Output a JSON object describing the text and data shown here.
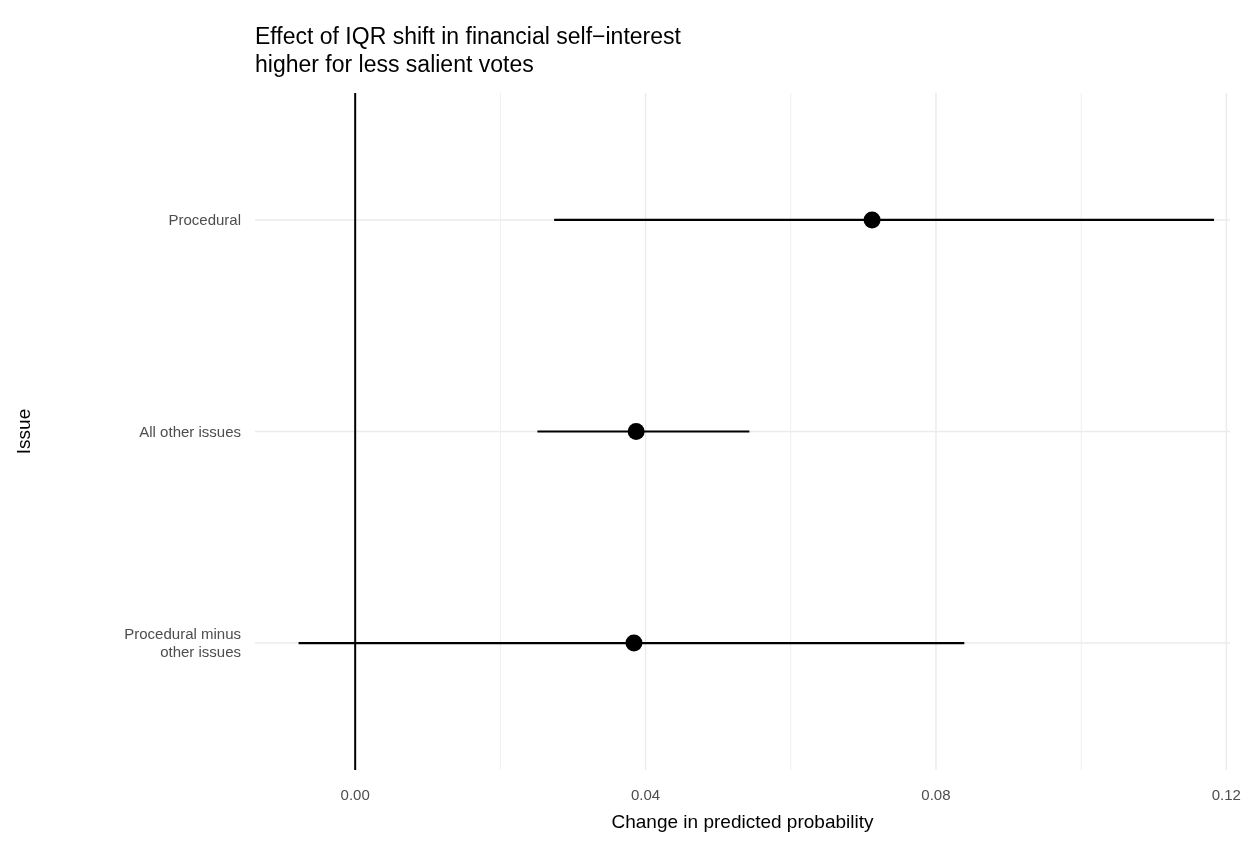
{
  "chart_data": {
    "type": "scatter",
    "orientation": "horizontal",
    "title": "Effect of IQR shift in financial self−interest\nhigher for less salient votes",
    "xlabel": "Change in predicted probability",
    "ylabel": "Issue",
    "categories": [
      "Procedural",
      "All other issues",
      "Procedural minus\nother issues"
    ],
    "series": [
      {
        "color": "#000000",
        "values": [
          0.0712,
          0.0387,
          0.0384
        ],
        "errors": [
          [
            0.0274,
            0.1183
          ],
          [
            0.0251,
            0.0543
          ],
          [
            -0.0078,
            0.0839
          ]
        ]
      }
    ],
    "xlim": [
      -0.0138,
      0.1205
    ],
    "xticks": [
      {
        "value": 0,
        "label": "0.00"
      },
      {
        "value": 0.02,
        "label": null
      },
      {
        "value": 0.04,
        "label": "0.04"
      },
      {
        "value": 0.06,
        "label": null
      },
      {
        "value": 0.08,
        "label": "0.08"
      },
      {
        "value": 0.1,
        "label": null
      },
      {
        "value": 0.12,
        "label": "0.12"
      }
    ],
    "ref_lines": [
      {
        "axis": "x",
        "value": 0,
        "color": "#000000"
      }
    ],
    "grid": true,
    "marker": "circle"
  }
}
